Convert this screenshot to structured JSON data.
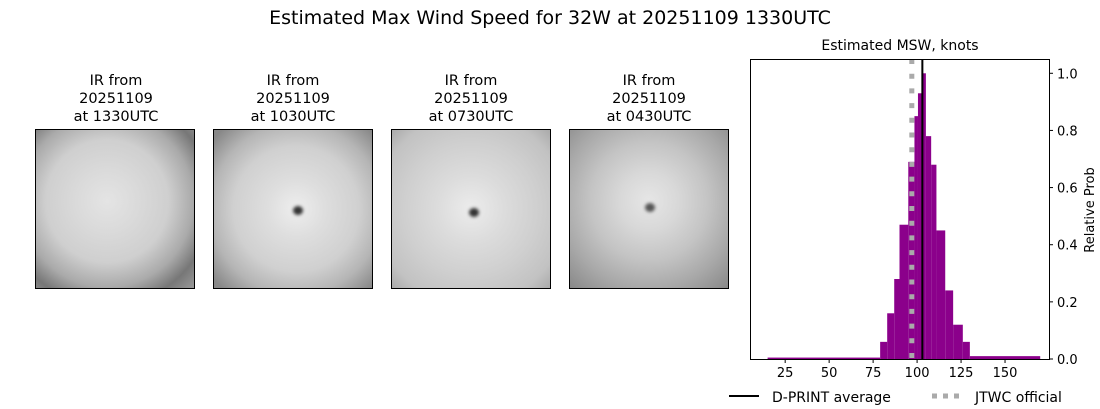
{
  "title": "Estimated Max Wind Speed for 32W at 20251109 1330UTC",
  "panels": [
    {
      "line1": "IR from",
      "line2": "20251109",
      "line3": "at 1330UTC"
    },
    {
      "line1": "IR from",
      "line2": "20251109",
      "line3": "at 1030UTC"
    },
    {
      "line1": "IR from",
      "line2": "20251109",
      "line3": "at 0730UTC"
    },
    {
      "line1": "IR from",
      "line2": "20251109",
      "line3": "at 0430UTC"
    }
  ],
  "chart_data": {
    "type": "bar",
    "title": "Estimated MSW, knots",
    "xlabel": "",
    "ylabel": "Relative Prob",
    "xlim": [
      5,
      175
    ],
    "ylim": [
      0,
      1.05
    ],
    "xticks": [
      25,
      50,
      75,
      100,
      125,
      150
    ],
    "yticks": [
      0.0,
      0.2,
      0.4,
      0.6,
      0.8,
      1.0
    ],
    "ytick_labels": [
      "0.0",
      "0.2",
      "0.4",
      "0.6",
      "0.8",
      "1.0"
    ],
    "bin_edges": [
      15,
      79,
      83,
      87,
      90,
      95,
      98.5,
      100.5,
      103,
      105,
      108,
      111,
      116,
      120.5,
      126,
      130,
      170
    ],
    "values": [
      0.005,
      0.06,
      0.16,
      0.28,
      0.47,
      0.69,
      0.85,
      0.93,
      1.0,
      0.78,
      0.68,
      0.45,
      0.24,
      0.12,
      0.06,
      0.01
    ],
    "bar_color": "#8b008b",
    "dprint_average": 103,
    "jtwc_official": 97,
    "legend": [
      {
        "label": "D-PRINT average",
        "style": "solid",
        "color": "#000000"
      },
      {
        "label": "JTWC official",
        "style": "dotted",
        "color": "#aaaaaa"
      }
    ],
    "legend_placement": "bottom",
    "y_axis_side": "right",
    "grid": false
  }
}
